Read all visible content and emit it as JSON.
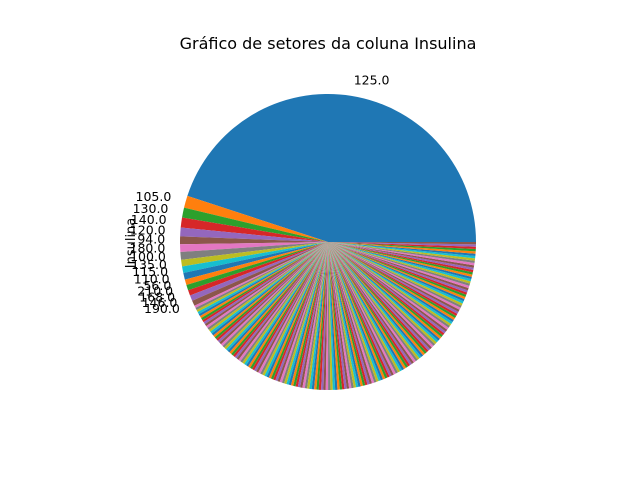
{
  "chart_data": {
    "type": "pie",
    "title": "Gráfico de setores da coluna Insulina",
    "ylabel": "Insulina",
    "start_angle_deg": 0,
    "counterclockwise": true,
    "palette": [
      "#1f77b4",
      "#ff7f0e",
      "#2ca02c",
      "#d62728",
      "#9467bd",
      "#8c564b",
      "#e377c2",
      "#7f7f7f",
      "#bcbd22",
      "#17becf"
    ],
    "labels": [
      "125.0",
      "105.0",
      "130.0",
      "140.0",
      "120.0",
      "94.0",
      "180.0",
      "100.0",
      "135.0",
      "115.0",
      "110.0",
      "56.0",
      "210.0",
      "168.0",
      "146.0",
      "190.0"
    ],
    "values": [
      374,
      11,
      9,
      9,
      8,
      7,
      7,
      7,
      6,
      6,
      6,
      5,
      5,
      5,
      5,
      5
    ],
    "other_slices": {
      "count": 170,
      "value_each": 2.1
    }
  }
}
